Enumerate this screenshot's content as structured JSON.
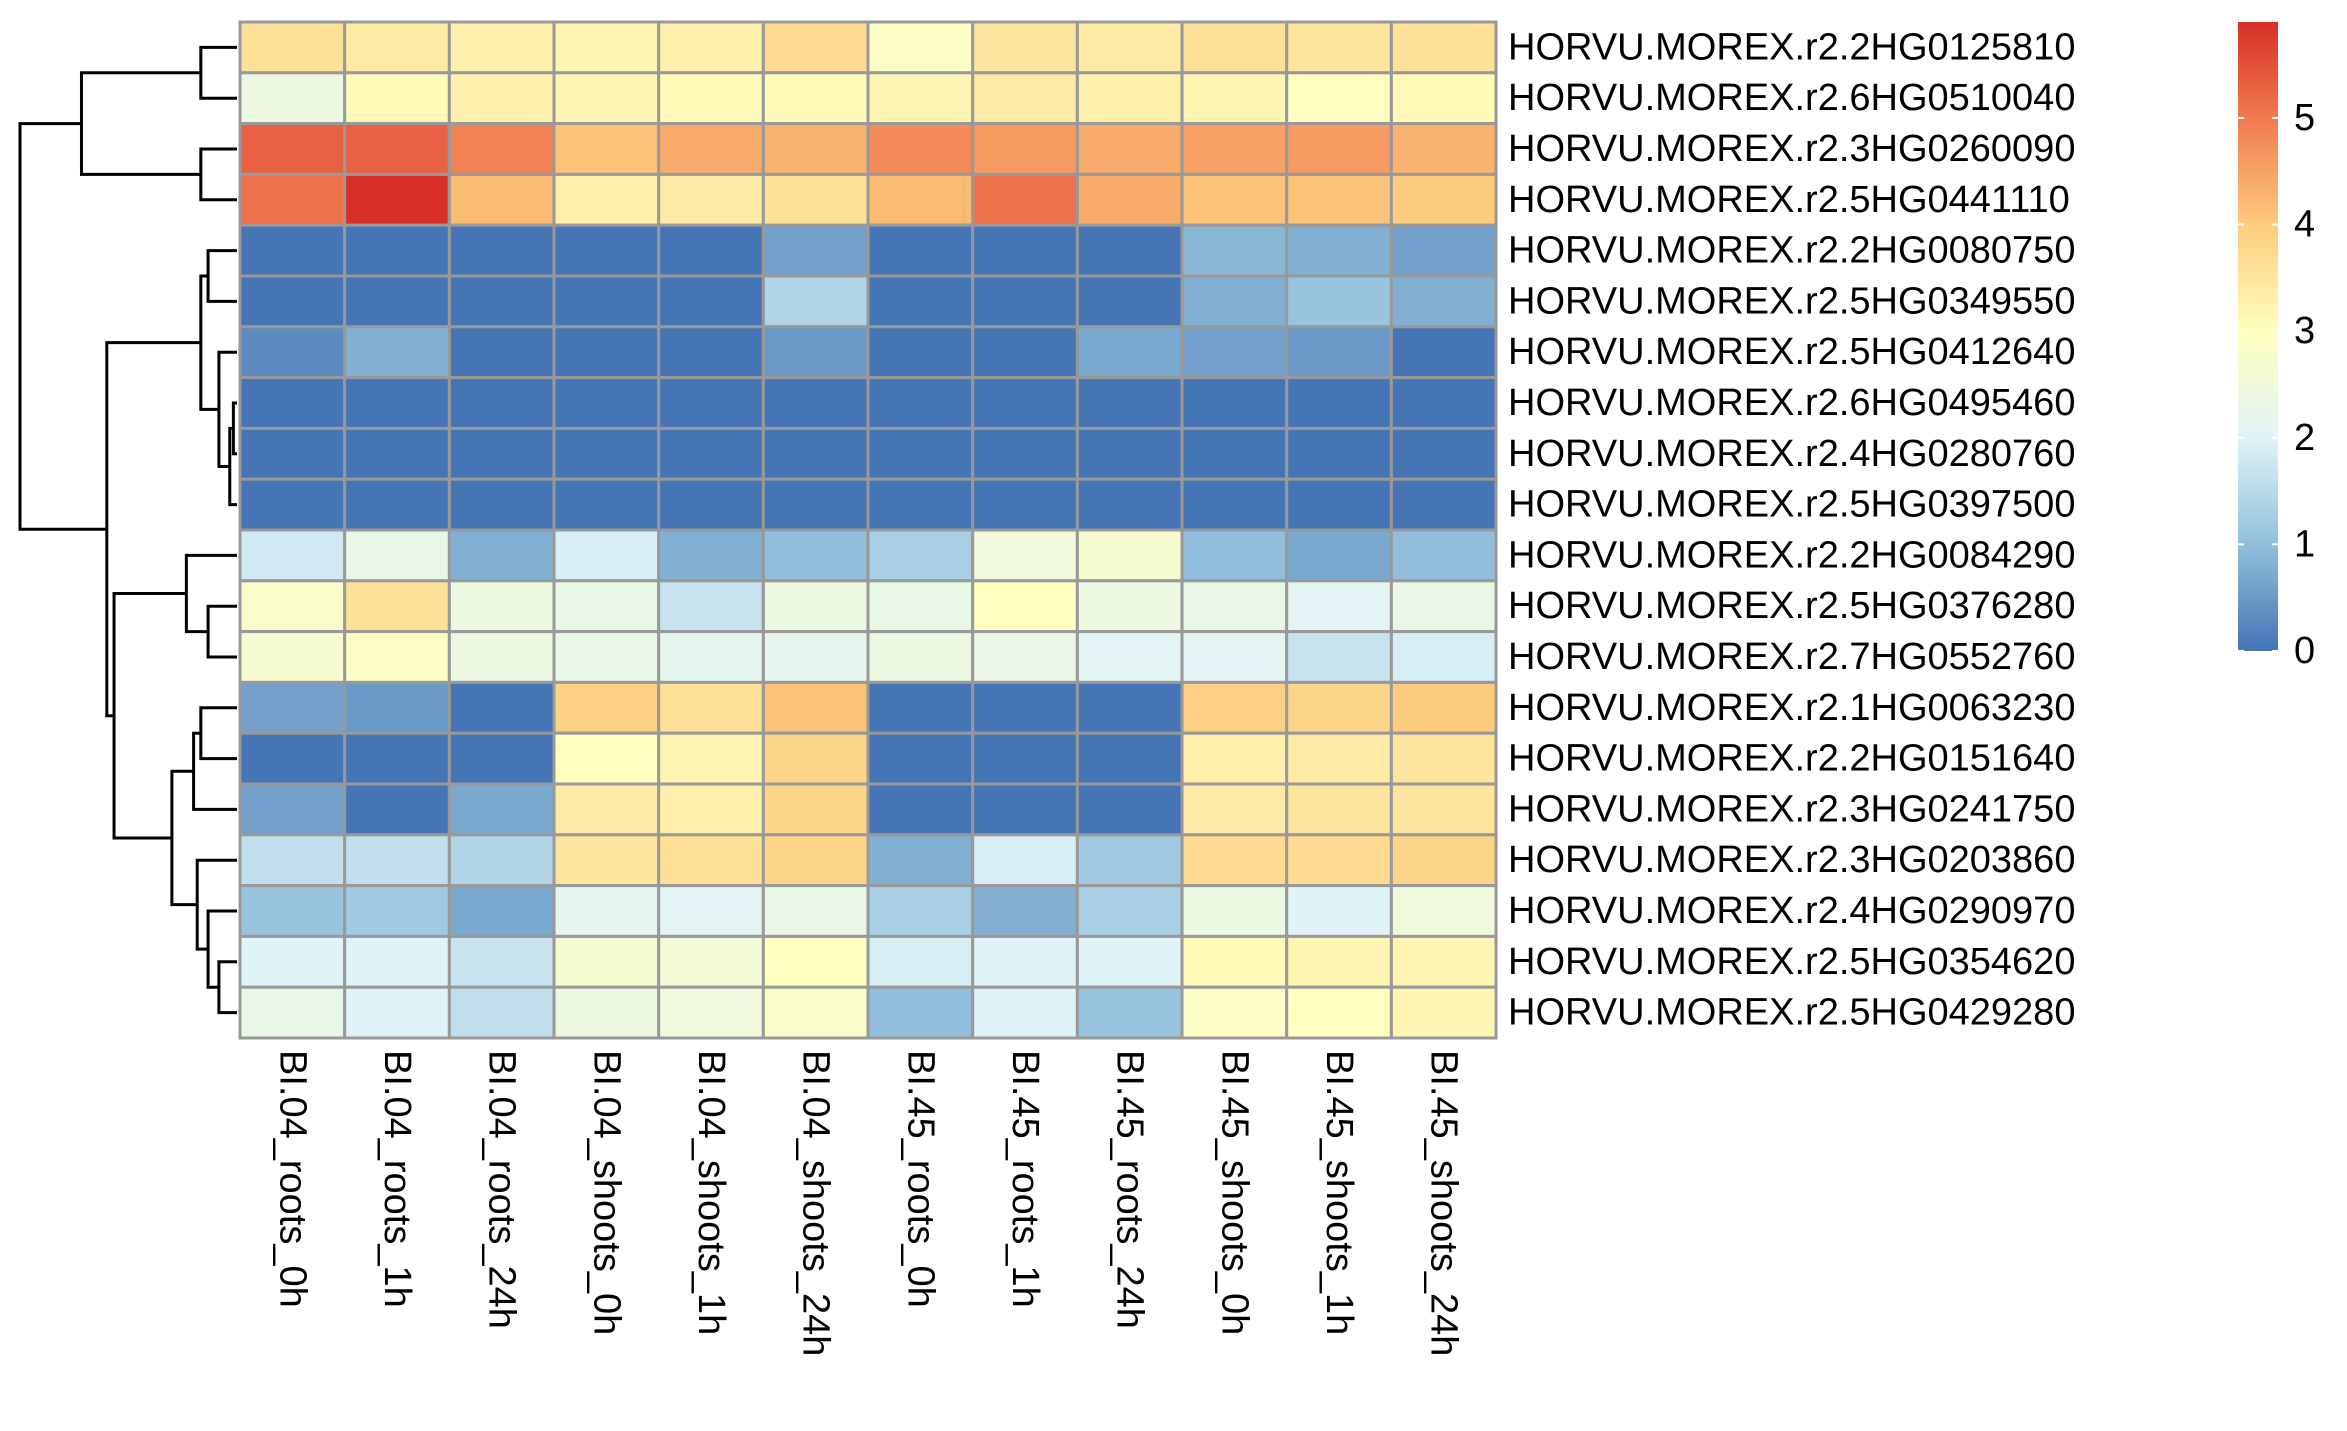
{
  "chart_data": {
    "type": "heatmap",
    "title": "",
    "xlabel": "",
    "ylabel": "",
    "columns": [
      "BI.04_roots_0h",
      "BI.04_roots_1h",
      "BI.04_roots_24h",
      "BI.04_shoots_0h",
      "BI.04_shoots_1h",
      "BI.04_shoots_24h",
      "BI.45_roots_0h",
      "BI.45_roots_1h",
      "BI.45_roots_24h",
      "BI.45_shoots_0h",
      "BI.45_shoots_1h",
      "BI.45_shoots_24h"
    ],
    "rows": [
      "HORVU.MOREX.r2.2HG0125810",
      "HORVU.MOREX.r2.6HG0510040",
      "HORVU.MOREX.r2.3HG0260090",
      "HORVU.MOREX.r2.5HG0441110",
      "HORVU.MOREX.r2.2HG0080750",
      "HORVU.MOREX.r2.5HG0349550",
      "HORVU.MOREX.r2.5HG0412640",
      "HORVU.MOREX.r2.6HG0495460",
      "HORVU.MOREX.r2.4HG0280760",
      "HORVU.MOREX.r2.5HG0397500",
      "HORVU.MOREX.r2.2HG0084290",
      "HORVU.MOREX.r2.5HG0376280",
      "HORVU.MOREX.r2.7HG0552760",
      "HORVU.MOREX.r2.1HG0063230",
      "HORVU.MOREX.r2.2HG0151640",
      "HORVU.MOREX.r2.3HG0241750",
      "HORVU.MOREX.r2.3HG0203860",
      "HORVU.MOREX.r2.4HG0290970",
      "HORVU.MOREX.r2.5HG0354620",
      "HORVU.MOREX.r2.5HG0429280"
    ],
    "values": [
      [
        3.6,
        3.4,
        3.3,
        3.2,
        3.3,
        3.7,
        2.9,
        3.5,
        3.4,
        3.6,
        3.5,
        3.6
      ],
      [
        2.4,
        3.1,
        3.3,
        3.2,
        3.1,
        3.1,
        3.2,
        3.4,
        3.3,
        3.2,
        3.0,
        3.1
      ],
      [
        5.3,
        5.3,
        4.9,
        4.1,
        4.4,
        4.3,
        4.8,
        4.6,
        4.4,
        4.5,
        4.6,
        4.3
      ],
      [
        5.1,
        5.9,
        4.2,
        3.3,
        3.4,
        3.6,
        4.2,
        5.1,
        4.4,
        4.1,
        4.1,
        4.0
      ],
      [
        0.0,
        0.0,
        0.0,
        0.0,
        0.0,
        0.6,
        0.0,
        0.0,
        0.0,
        0.9,
        0.8,
        0.6
      ],
      [
        0.0,
        0.0,
        0.0,
        0.0,
        0.0,
        1.4,
        0.0,
        0.0,
        0.0,
        0.8,
        1.1,
        0.8
      ],
      [
        0.3,
        0.8,
        0.0,
        0.0,
        0.0,
        0.5,
        0.0,
        0.0,
        0.7,
        0.6,
        0.5,
        0.0
      ],
      [
        0.0,
        0.0,
        0.0,
        0.0,
        0.0,
        0.0,
        0.0,
        0.0,
        0.0,
        0.0,
        0.0,
        0.0
      ],
      [
        0.0,
        0.0,
        0.0,
        0.0,
        0.0,
        0.0,
        0.0,
        0.0,
        0.0,
        0.0,
        0.0,
        0.0
      ],
      [
        0.0,
        0.0,
        0.0,
        0.0,
        0.0,
        0.0,
        0.0,
        0.0,
        0.0,
        0.0,
        0.0,
        0.0
      ],
      [
        1.8,
        2.3,
        0.8,
        1.9,
        0.8,
        1.0,
        1.3,
        2.5,
        2.7,
        1.0,
        0.7,
        1.0
      ],
      [
        2.8,
        3.6,
        2.4,
        2.3,
        1.7,
        2.4,
        2.3,
        3.0,
        2.4,
        2.3,
        2.1,
        2.3
      ],
      [
        2.7,
        2.9,
        2.4,
        2.3,
        2.2,
        2.2,
        2.4,
        2.3,
        2.1,
        2.1,
        1.7,
        1.9
      ],
      [
        0.6,
        0.5,
        0.0,
        3.9,
        3.6,
        4.1,
        0.0,
        0.0,
        0.0,
        3.9,
        3.8,
        4.0
      ],
      [
        0.0,
        0.0,
        0.0,
        3.0,
        3.2,
        3.8,
        0.0,
        0.0,
        0.0,
        3.3,
        3.4,
        3.5
      ],
      [
        0.6,
        0.0,
        0.7,
        3.4,
        3.3,
        3.8,
        0.0,
        0.0,
        0.0,
        3.4,
        3.5,
        3.5
      ],
      [
        1.6,
        1.6,
        1.4,
        3.5,
        3.6,
        3.8,
        0.8,
        1.9,
        1.2,
        3.7,
        3.7,
        3.8
      ],
      [
        1.1,
        1.2,
        0.7,
        2.2,
        2.1,
        2.3,
        1.3,
        0.8,
        1.3,
        2.4,
        2.0,
        2.5
      ],
      [
        2.0,
        2.0,
        1.7,
        2.7,
        2.6,
        3.0,
        1.9,
        2.0,
        2.0,
        3.1,
        3.2,
        3.2
      ],
      [
        2.3,
        2.0,
        1.6,
        2.4,
        2.5,
        2.8,
        1.0,
        2.0,
        1.1,
        2.9,
        3.0,
        3.2
      ]
    ],
    "color_scale": {
      "stops": [
        {
          "value": 0.0,
          "color": "#4575b4"
        },
        {
          "value": 1.0,
          "color": "#91bfdb"
        },
        {
          "value": 2.0,
          "color": "#e0f3f8"
        },
        {
          "value": 3.0,
          "color": "#ffffbf"
        },
        {
          "value": 4.0,
          "color": "#fdcb7c"
        },
        {
          "value": 5.0,
          "color": "#f07a4f"
        },
        {
          "value": 5.9,
          "color": "#d73027"
        }
      ],
      "ticks": [
        0,
        1,
        2,
        3,
        4,
        5
      ],
      "range": [
        0,
        5.9
      ]
    },
    "cell_border_color": "#999999",
    "dendrogram_color": "#000000",
    "row_dendrogram": {
      "order": [
        0,
        1,
        2,
        3,
        4,
        5,
        6,
        7,
        8,
        9,
        10,
        11,
        12,
        13,
        14,
        15,
        16,
        17,
        18,
        19
      ],
      "merges": [
        [
          -1,
          -2,
          0.1
        ],
        [
          -3,
          -4,
          0.1
        ],
        [
          1,
          2,
          0.43
        ],
        [
          -8,
          -9,
          0.01
        ],
        [
          -10,
          4,
          0.02
        ],
        [
          -7,
          5,
          0.05
        ],
        [
          -5,
          -6,
          0.08
        ],
        [
          6,
          7,
          0.1
        ],
        [
          -12,
          -13,
          0.08
        ],
        [
          -11,
          9,
          0.14
        ],
        [
          -14,
          -15,
          0.1
        ],
        [
          -16,
          11,
          0.12
        ],
        [
          -19,
          -20,
          0.05
        ],
        [
          -18,
          13,
          0.08
        ],
        [
          -17,
          14,
          0.11
        ],
        [
          12,
          15,
          0.18
        ],
        [
          10,
          16,
          0.34
        ],
        [
          8,
          17,
          0.36
        ],
        [
          3,
          18,
          0.6
        ]
      ]
    }
  }
}
